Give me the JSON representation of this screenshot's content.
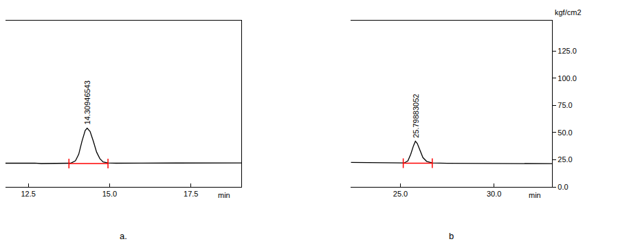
{
  "chart_data": [
    {
      "type": "line",
      "panel_label": "a.",
      "x": [
        11.8,
        12.2,
        12.5,
        12.7,
        12.9,
        13.2,
        13.5,
        13.8,
        13.95,
        14.05,
        14.15,
        14.25,
        14.31,
        14.4,
        14.5,
        14.6,
        14.7,
        14.8,
        14.95,
        15.2,
        16.0,
        17.0,
        18.0,
        19.0,
        19.05
      ],
      "values": [
        21.8,
        21.9,
        22.3,
        21.9,
        21.5,
        21.6,
        21.6,
        21.8,
        24,
        30,
        42,
        52,
        54,
        51,
        42,
        32,
        26,
        23,
        22,
        21.8,
        21.9,
        22,
        22,
        22.1,
        22.1
      ],
      "color": "#000000",
      "xlim": [
        11.8,
        19.05
      ],
      "xticks": [
        {
          "value": 12.5,
          "label": "12.5"
        },
        {
          "value": 15,
          "label": "15.0"
        },
        {
          "value": 17.5,
          "label": "17.5"
        }
      ],
      "x_label": "min",
      "ylim": [
        0,
        153
      ],
      "tick_labels": "x",
      "grid": false,
      "peak": {
        "x": 14.309,
        "y": 54,
        "label": "14.30946543"
      },
      "integration": {
        "x": [
          13.75,
          14.95
        ],
        "values": [
          21.5,
          21.5
        ],
        "color": "#ff0000"
      }
    },
    {
      "type": "line",
      "panel_label": "b",
      "x": [
        22.35,
        23.5,
        24.5,
        25.2,
        25.4,
        25.55,
        25.7,
        25.8,
        25.9,
        26.05,
        26.2,
        26.4,
        26.7,
        27.5,
        29.0,
        31.0,
        33.1
      ],
      "values": [
        22.5,
        22.3,
        22,
        22,
        24,
        30,
        38,
        42,
        40,
        33,
        27,
        23.5,
        22,
        21.7,
        21.6,
        21.5,
        21.4
      ],
      "color": "#000000",
      "xlim": [
        22.35,
        33.1
      ],
      "xticks": [
        {
          "value": 25,
          "label": "25.0"
        },
        {
          "value": 30,
          "label": "30.0"
        }
      ],
      "x_label": "min",
      "ylim": [
        0,
        153
      ],
      "yticks": [
        {
          "value": 0,
          "label": "0.0"
        },
        {
          "value": 25,
          "label": "25.0"
        },
        {
          "value": 50,
          "label": "50.0"
        },
        {
          "value": 75,
          "label": "75.0"
        },
        {
          "value": 100,
          "label": "100.0"
        },
        {
          "value": 125,
          "label": "125.0"
        }
      ],
      "y_label": "kgf/cm2",
      "grid": false,
      "peak": {
        "x": 25.799,
        "y": 42,
        "label": "25.79883052"
      },
      "integration": {
        "x": [
          25.15,
          26.7
        ],
        "values": [
          21.8,
          21.8
        ],
        "color": "#ff0000"
      }
    }
  ]
}
